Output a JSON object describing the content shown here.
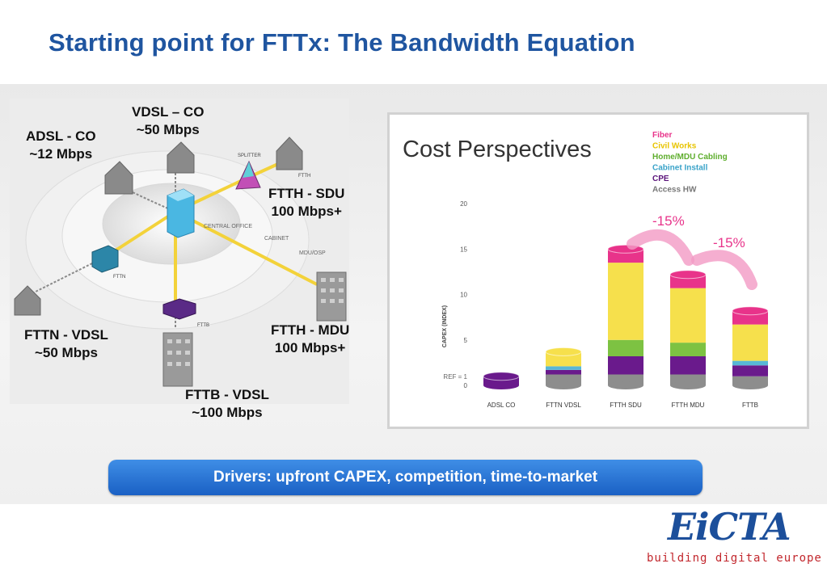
{
  "title": "Starting point for FTTx: The Bandwidth Equation",
  "network": {
    "labels": {
      "adsl": [
        "ADSL - CO",
        "~12 Mbps"
      ],
      "vdsl": [
        "VDSL – CO",
        "~50 Mbps"
      ],
      "ftth_sdu": [
        "FTTH - SDU",
        "100 Mbps+"
      ],
      "fttn": [
        "FTTN - VDSL",
        "~50 Mbps"
      ],
      "ftth_mdu": [
        "FTTH - MDU",
        "100 Mbps+"
      ],
      "fttb": [
        "FTTB - VDSL",
        "~100 Mbps"
      ]
    },
    "small": {
      "splitter": "SPLITTER",
      "ftth": "FTTH",
      "central_office": "CENTRAL OFFICE",
      "cabinet": "CABINET",
      "mdu_osp": "MDU/OSP",
      "fttn": "FTTN",
      "fttb": "FTTB"
    }
  },
  "chart_data": {
    "type": "bar",
    "title": "Cost Perspectives",
    "ylabel": "CAPEX (INDEX)",
    "ylim": [
      0,
      20
    ],
    "yticks": [
      "20",
      "15",
      "10",
      "5",
      "0"
    ],
    "ref_label": "REF = 1",
    "categories": [
      "ADSL CO",
      "FTTN VDSL",
      "FTTH SDU",
      "FTTH MDU",
      "FTTB"
    ],
    "series": [
      {
        "name": "Access HW",
        "color": "#8d8d8d",
        "values": [
          0,
          1.2,
          1.2,
          1.2,
          1.0
        ]
      },
      {
        "name": "CPE",
        "color": "#6a1a8c",
        "values": [
          1,
          0.5,
          2.0,
          2.0,
          1.2
        ]
      },
      {
        "name": "Cabinet Install",
        "color": "#58b7d6",
        "values": [
          0,
          0.4,
          0,
          0,
          0.5
        ]
      },
      {
        "name": "Home/MDU Cabling",
        "color": "#7dc242",
        "values": [
          0,
          0,
          1.8,
          1.5,
          0
        ]
      },
      {
        "name": "Civil Works",
        "color": "#f6e04c",
        "values": [
          0,
          1.6,
          8.5,
          6.0,
          4.0
        ]
      },
      {
        "name": "Fiber",
        "color": "#e8338a",
        "values": [
          0,
          0,
          1.5,
          1.5,
          1.5
        ]
      }
    ],
    "annotations": [
      "-15%",
      "-15%"
    ],
    "legend_position": "top-right"
  },
  "drivers_text": "Drivers: upfront CAPEX, competition, time-to-market",
  "logo": {
    "name": "EiCTA",
    "tagline": "building digital europe"
  }
}
